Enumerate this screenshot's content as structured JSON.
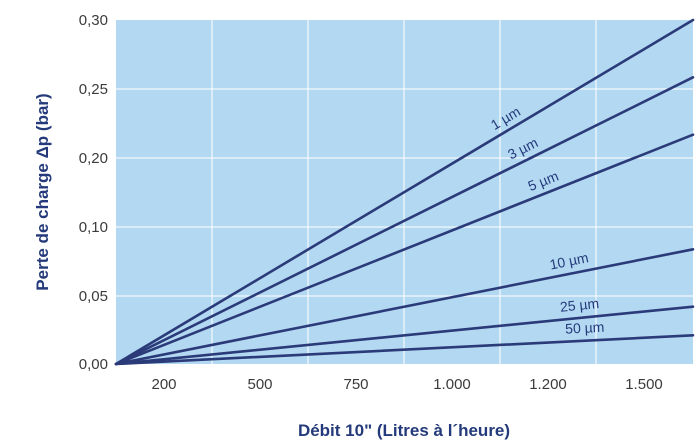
{
  "chart_data": {
    "type": "line",
    "xlabel": "Débit 10\" (Litres à l´heure)",
    "ylabel": "Perte de charge Δp (bar)",
    "x_tick_labels": [
      "200",
      "500",
      "750",
      "1.000",
      "1.200",
      "1.500"
    ],
    "y_tick_labels": [
      "0,00",
      "0,05",
      "0,10",
      "0,20",
      "0,25",
      "0,30"
    ],
    "ylim": [
      0,
      0.3
    ],
    "grid": true,
    "legend": "none",
    "series": [
      {
        "name": "1 µm",
        "values": [
          0,
          0.3
        ]
      },
      {
        "name": "3 µm",
        "values": [
          0,
          0.25
        ]
      },
      {
        "name": "5 µm",
        "values": [
          0,
          0.2
        ]
      },
      {
        "name": "10 µm",
        "values": [
          0,
          0.1
        ]
      },
      {
        "name": "25 µm",
        "values": [
          0,
          0.05
        ]
      },
      {
        "name": "50 µm",
        "values": [
          0,
          0.025
        ]
      }
    ],
    "colors": {
      "plot_background": "#b3d8f2",
      "gridline": "#ffffff",
      "series_line": "#2b3a78",
      "axis_title": "#243a7a",
      "tick_text": "#3b3b3b"
    }
  }
}
